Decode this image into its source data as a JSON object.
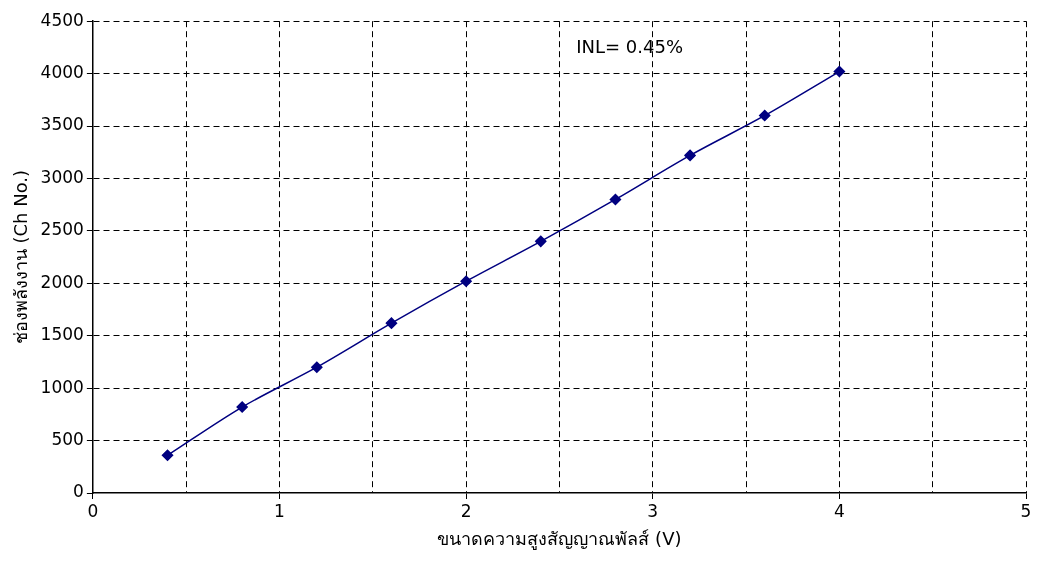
{
  "chart_data": {
    "type": "line",
    "xlabel": "ขนาดความสูงสัญญาณพัลส์ (V)",
    "ylabel": "ช่องพลังงาน (Ch No.)",
    "annotations": [
      "INL= 0.45%"
    ],
    "x": [
      0.4,
      0.8,
      1.2,
      1.6,
      2.0,
      2.4,
      2.8,
      3.2,
      3.6,
      4.0
    ],
    "series": [
      {
        "color": "#000080",
        "values": [
          360,
          820,
          1200,
          1620,
          2020,
          2400,
          2800,
          3220,
          3600,
          4020
        ]
      }
    ],
    "xlim": [
      0,
      5
    ],
    "xticks": [
      0,
      {
        "value": 0.5,
        "label": null
      },
      1,
      {
        "value": 1.5,
        "label": null
      },
      2,
      {
        "value": 2.5,
        "label": null
      },
      3,
      {
        "value": 3.5,
        "label": null
      },
      4,
      {
        "value": 4.5,
        "label": null
      },
      5
    ],
    "ylim": [
      0,
      4500
    ],
    "yticks": [
      0,
      500,
      1000,
      1500,
      2000,
      2500,
      3000,
      3500,
      4000,
      4500
    ],
    "grid": true,
    "legend": false,
    "marker": "diamond",
    "line_style": "solid"
  }
}
